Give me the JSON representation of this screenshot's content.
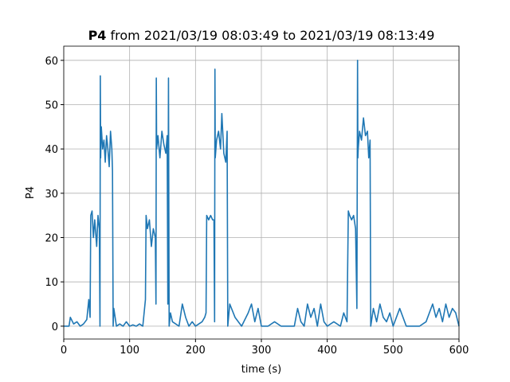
{
  "chart_data": {
    "type": "line",
    "title": {
      "bold": "P4",
      "rest": "from 2021/03/19 08:03:49 to 2021/03/19 08:13:49"
    },
    "xlabel": "time (s)",
    "ylabel": "P4",
    "x": [
      0,
      8,
      10,
      15,
      20,
      25,
      30,
      35,
      38,
      40,
      41,
      43,
      45,
      47,
      50,
      52,
      54,
      55,
      55.5,
      56,
      57,
      59,
      61,
      63,
      65,
      67,
      69,
      71,
      73,
      74,
      75,
      76,
      78,
      80,
      85,
      90,
      95,
      100,
      105,
      110,
      115,
      120,
      124,
      125,
      127,
      130,
      133,
      136,
      139,
      140,
      140.5,
      141,
      143,
      146,
      149,
      152,
      155,
      157,
      158,
      159,
      160,
      162,
      165,
      170,
      175,
      180,
      185,
      190,
      195,
      200,
      205,
      210,
      214,
      216,
      217,
      220,
      223,
      226,
      228,
      229,
      229.5,
      230,
      232,
      235,
      238,
      240,
      243,
      246,
      248,
      249,
      252,
      260,
      270,
      280,
      285,
      290,
      295,
      300,
      310,
      320,
      330,
      340,
      350,
      355,
      360,
      365,
      370,
      375,
      380,
      385,
      390,
      395,
      400,
      410,
      420,
      425,
      430,
      432,
      434,
      437,
      440,
      443,
      445,
      446,
      446.5,
      447,
      449,
      452,
      455,
      458,
      461,
      463,
      465,
      466,
      470,
      475,
      480,
      485,
      490,
      495,
      500,
      510,
      520,
      530,
      540,
      550,
      560,
      565,
      570,
      575,
      580,
      585,
      590,
      595,
      600
    ],
    "series": [
      {
        "name": "P4",
        "color": "#1f77b4",
        "values": [
          0,
          0,
          2,
          0.5,
          1,
          0,
          0.5,
          1.5,
          6,
          2,
          25,
          26,
          20,
          24,
          18,
          25,
          22,
          0,
          56.5,
          38,
          45,
          40,
          42,
          37,
          43,
          40,
          36,
          44,
          40,
          35,
          0,
          4,
          2,
          0,
          0.5,
          0,
          1,
          0,
          0.3,
          0,
          0.5,
          0,
          6,
          25,
          22,
          24,
          18,
          22,
          20,
          5,
          56,
          40,
          43,
          38,
          44,
          41,
          39,
          43,
          5,
          56,
          0,
          3,
          1,
          0.5,
          0,
          5,
          2,
          0,
          1,
          0,
          0.5,
          1,
          2,
          3,
          25,
          24,
          25,
          24,
          24,
          1,
          58,
          38,
          42,
          44,
          40,
          48,
          39,
          37,
          44,
          0,
          5,
          2,
          0,
          3,
          5,
          1,
          4,
          0,
          0,
          1,
          0,
          0,
          0,
          4,
          1,
          0,
          5,
          2,
          4,
          0,
          5,
          1,
          0,
          1,
          0,
          3,
          1,
          26,
          25,
          24,
          25,
          22,
          4,
          60,
          38,
          40,
          44,
          42,
          47,
          43,
          44,
          38,
          42,
          0,
          4,
          1,
          5,
          2,
          1,
          3,
          0,
          4,
          0,
          0,
          0,
          1,
          5,
          2,
          4,
          1,
          5,
          2,
          4,
          3,
          0
        ]
      }
    ],
    "xlim": [
      0,
      600
    ],
    "ylim": [
      -2.9,
      63.2
    ],
    "xticks": [
      0,
      100,
      200,
      300,
      400,
      500,
      600
    ],
    "yticks": [
      0,
      10,
      20,
      30,
      40,
      50,
      60
    ],
    "grid": true
  }
}
